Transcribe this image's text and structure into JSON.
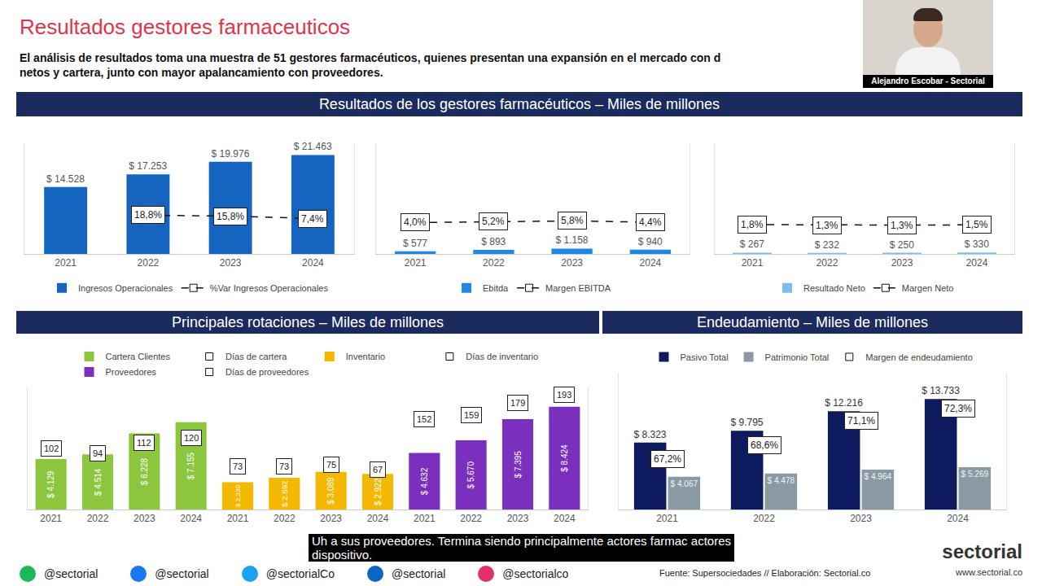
{
  "header": {
    "title": "Resultados gestores farmaceuticos",
    "subtitle": [
      "El análisis de resultados toma una muestra de 51 gestores farmacéuticos, quienes presentan una expansión en el mercado con d",
      "netos y cartera, junto con mayor apalancamiento con proveedores."
    ]
  },
  "webcam": {
    "name": "Alejandro Escobar - Sectorial"
  },
  "sections": [
    "Resultados de los gestores farmacéuticos – Miles de millones",
    "Principales rotaciones – Miles de millones",
    "Endeudamiento – Miles de millones"
  ],
  "chart_data": [
    {
      "type": "bar",
      "categories": [
        "2021",
        "2022",
        "2023",
        "2024"
      ],
      "series": [
        {
          "name": "Ingresos Operacionales",
          "type": "bar",
          "color": "#1565c0",
          "values": [
            14528,
            17253,
            19976,
            21463
          ],
          "value_labels": [
            "$ 14.528",
            "$ 17.253",
            "$ 19.976",
            "$ 21.463"
          ]
        },
        {
          "name": "%Var Ingresos Operacionales",
          "type": "line",
          "axis": "y2",
          "color": "#111111",
          "line_style": "dash",
          "marker": "square-open",
          "values": [
            null,
            18.8,
            15.8,
            7.4
          ],
          "value_labels": [
            null,
            "18,8%",
            "15,8%",
            "7,4%"
          ]
        }
      ],
      "ylim": [
        0,
        24000
      ],
      "y2lim": [
        -115,
        268
      ],
      "data_labels": true,
      "tick_labels": "x",
      "grid": false,
      "legend": "bottom"
    },
    {
      "type": "bar",
      "categories": [
        "2021",
        "2022",
        "2023",
        "2024"
      ],
      "series": [
        {
          "name": "Ebitda",
          "type": "bar",
          "color": "#1e88e5",
          "values": [
            577,
            893,
            1158,
            940
          ],
          "value_labels": [
            "$ 577",
            "$ 893",
            "$ 1.158",
            "$ 940"
          ]
        },
        {
          "name": "Margen EBITDA",
          "type": "line",
          "axis": "y2",
          "color": "#111111",
          "line_style": "dash",
          "marker": "square-open",
          "values": [
            4.0,
            5.2,
            5.8,
            4.4
          ],
          "value_labels": [
            "4,0%",
            "5,2%",
            "5,8%",
            "4,4%"
          ]
        }
      ],
      "ylim": [
        0,
        24000
      ],
      "y2lim": [
        -30,
        90
      ],
      "data_labels": true,
      "tick_labels": "x",
      "grid": false,
      "legend": "bottom"
    },
    {
      "type": "bar",
      "categories": [
        "2021",
        "2022",
        "2023",
        "2024"
      ],
      "series": [
        {
          "name": "Resultado Neto",
          "type": "bar",
          "color": "#7cbcf0",
          "values": [
            267,
            232,
            250,
            330
          ],
          "value_labels": [
            "$ 267",
            "$ 232",
            "$ 250",
            "$ 330"
          ]
        },
        {
          "name": "Margen Neto",
          "type": "line",
          "axis": "y2",
          "color": "#111111",
          "line_style": "dash",
          "marker": "square-open",
          "values": [
            1.8,
            1.3,
            1.3,
            1.5
          ],
          "value_labels": [
            "1,8%",
            "1,3%",
            "1,3%",
            "1,5%"
          ]
        }
      ],
      "ylim": [
        0,
        24000
      ],
      "y2lim": [
        -30,
        90
      ],
      "data_labels": true,
      "tick_labels": "x",
      "grid": false,
      "legend": "bottom"
    },
    {
      "type": "bar",
      "categories": [
        "2021",
        "2022",
        "2023",
        "2024",
        "2021",
        "2022",
        "2023",
        "2024",
        "2021",
        "2022",
        "2023",
        "2024"
      ],
      "series": [
        {
          "name": "Cartera Clientes",
          "type": "bar",
          "color": "#8cc63f",
          "values": [
            4129,
            4514,
            6228,
            7155,
            null,
            null,
            null,
            null,
            null,
            null,
            null,
            null
          ],
          "value_labels": [
            "$ 4.129",
            "$ 4.514",
            "$ 6.228",
            "$ 7.155",
            null,
            null,
            null,
            null,
            null,
            null,
            null,
            null
          ]
        },
        {
          "name": "Días de cartera",
          "type": "scatter",
          "axis": "y2",
          "color": "#111111",
          "marker": "square-open",
          "values": [
            102,
            94,
            112,
            120,
            null,
            null,
            null,
            null,
            null,
            null,
            null,
            null
          ]
        },
        {
          "name": "Inventario",
          "type": "bar",
          "color": "#f5b800",
          "values": [
            null,
            null,
            null,
            null,
            2230,
            2592,
            3089,
            2922,
            null,
            null,
            null,
            null
          ],
          "value_labels": [
            null,
            null,
            null,
            null,
            "$ 2.230",
            "$ 2.592",
            "$ 3.089",
            "$ 2.922",
            null,
            null,
            null,
            null
          ]
        },
        {
          "name": "Días de inventario",
          "type": "scatter",
          "axis": "y2",
          "color": "#111111",
          "marker": "square-open",
          "values": [
            null,
            null,
            null,
            null,
            73,
            73,
            75,
            67,
            null,
            null,
            null,
            null
          ]
        },
        {
          "name": "Proveedores",
          "type": "bar",
          "color": "#7b2fbe",
          "values": [
            null,
            null,
            null,
            null,
            null,
            null,
            null,
            null,
            4632,
            5670,
            7395,
            8424
          ],
          "value_labels": [
            null,
            null,
            null,
            null,
            null,
            null,
            null,
            null,
            "$ 4.632",
            "$ 5.670",
            "$ 7.395",
            "$ 8.424"
          ]
        },
        {
          "name": "Días de proveedores",
          "type": "scatter",
          "axis": "y2",
          "color": "#111111",
          "marker": "square-open",
          "values": [
            null,
            null,
            null,
            null,
            null,
            null,
            null,
            null,
            152,
            159,
            179,
            193
          ]
        }
      ],
      "ylim": [
        0,
        10000
      ],
      "y2lim": [
        0,
        205
      ],
      "data_labels": true,
      "tick_labels": "x",
      "grid": false,
      "legend": "top"
    },
    {
      "type": "bar",
      "categories": [
        "2021",
        "2022",
        "2023",
        "2024"
      ],
      "series": [
        {
          "name": "Pasivo Total",
          "type": "bar",
          "color": "#0d1b5e",
          "values": [
            8323,
            9795,
            12216,
            13733
          ],
          "value_labels": [
            "$ 8.323",
            "$ 9.795",
            "$ 12.216",
            "$ 13.733"
          ]
        },
        {
          "name": "Patrimonio Total",
          "type": "bar",
          "color": "#8a9aa5",
          "values": [
            4067,
            4478,
            4964,
            5269
          ],
          "value_labels": [
            "$ 4.067",
            "$ 4.478",
            "$ 4.964",
            "$ 5.269"
          ]
        },
        {
          "name": "Margen de endeudamiento",
          "type": "scatter",
          "axis": "y2",
          "color": "#111111",
          "marker": "square-open",
          "values": [
            67.2,
            68.6,
            71.1,
            72.3
          ],
          "value_labels": [
            "67,2%",
            "68,6%",
            "71,1%",
            "72,3%"
          ]
        }
      ],
      "ylim": [
        0,
        17000
      ],
      "y2lim": [
        62,
        76
      ],
      "data_labels": true,
      "tick_labels": "x",
      "grid": false,
      "legend": "top"
    }
  ],
  "caption": [
    "Uh a sus proveedores. Termina siendo principalmente actores farmac actores",
    "dispositivo."
  ],
  "footer": {
    "handles": [
      "@sectorial",
      "@sectorial",
      "@sectorialCo",
      "@sectorial",
      "@sectorialco"
    ],
    "source": "Fuente: Supersociedades // Elaboración: Sectorial.co",
    "logo": "sectorial",
    "url": "www.sectorial.co"
  }
}
